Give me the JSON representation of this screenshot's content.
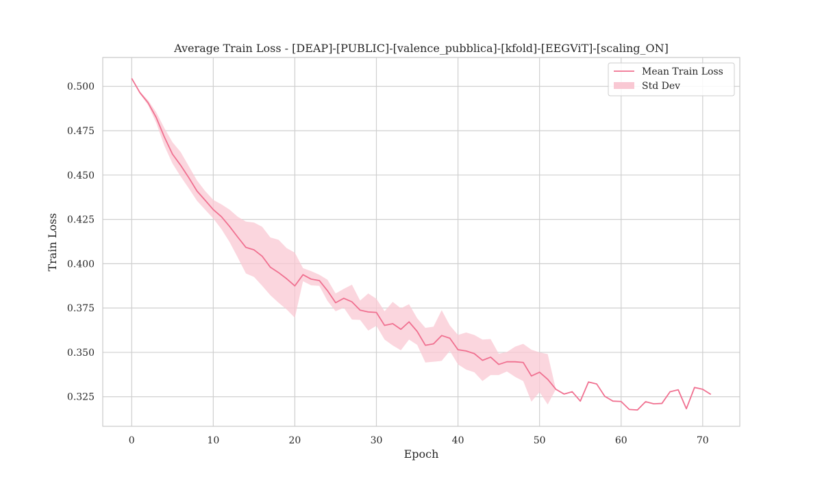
{
  "chart_data": {
    "type": "line",
    "title": "Average Train Loss - [DEAP]-[PUBLIC]-[valence_pubblica]-[kfold]-[EEGViT]-[scaling_ON]",
    "xlabel": "Epoch",
    "ylabel": "Train Loss",
    "xlim": [
      -3.55,
      74.55
    ],
    "ylim": [
      0.3083,
      0.5163
    ],
    "xticks": [
      0,
      10,
      20,
      30,
      40,
      50,
      60,
      70
    ],
    "yticks": [
      0.325,
      0.35,
      0.375,
      0.4,
      0.425,
      0.45,
      0.475,
      0.5
    ],
    "ytick_labels": [
      "0.325",
      "0.350",
      "0.375",
      "0.400",
      "0.425",
      "0.450",
      "0.475",
      "0.500"
    ],
    "grid": true,
    "legend_position": "top-right",
    "legend": [
      "Mean Train Loss",
      "Std Dev"
    ],
    "colors": {
      "line": "#f07090",
      "band": "#f9c8d3",
      "grid": "#cfcfcf",
      "frame": "#c9c9c9"
    },
    "x": [
      0,
      1,
      2,
      3,
      4,
      5,
      6,
      7,
      8,
      9,
      10,
      11,
      12,
      13,
      14,
      15,
      16,
      17,
      18,
      19,
      20,
      21,
      22,
      23,
      24,
      25,
      26,
      27,
      28,
      29,
      30,
      31,
      32,
      33,
      34,
      35,
      36,
      37,
      38,
      39,
      40,
      41,
      42,
      43,
      44,
      45,
      46,
      47,
      48,
      49,
      50,
      51,
      52,
      53,
      54,
      55,
      56,
      57,
      58,
      59,
      60,
      61,
      62,
      63,
      64,
      65,
      66,
      67,
      68,
      69,
      70,
      71
    ],
    "series": [
      {
        "name": "Mean Train Loss",
        "values": [
          0.5045,
          0.4965,
          0.4908,
          0.4825,
          0.4715,
          0.4618,
          0.4555,
          0.4485,
          0.441,
          0.4358,
          0.4305,
          0.4265,
          0.421,
          0.415,
          0.4092,
          0.4078,
          0.4042,
          0.398,
          0.395,
          0.3915,
          0.3875,
          0.3938,
          0.3913,
          0.3905,
          0.3848,
          0.378,
          0.3805,
          0.3785,
          0.3738,
          0.3728,
          0.3725,
          0.3652,
          0.3662,
          0.363,
          0.3672,
          0.3618,
          0.354,
          0.3548,
          0.3595,
          0.358,
          0.3515,
          0.3508,
          0.3493,
          0.3455,
          0.3473,
          0.3432,
          0.3447,
          0.3447,
          0.3443,
          0.3367,
          0.3388,
          0.3348,
          0.3292,
          0.3265,
          0.3278,
          0.3225,
          0.3333,
          0.3322,
          0.3252,
          0.3225,
          0.3223,
          0.3178,
          0.3175,
          0.3222,
          0.321,
          0.3212,
          0.3278,
          0.3289,
          0.3182,
          0.3302,
          0.3292,
          0.3263
        ]
      }
    ],
    "band": {
      "name": "Std Dev",
      "upper": [
        0.5045,
        0.4972,
        0.4922,
        0.4855,
        0.4765,
        0.4685,
        0.463,
        0.455,
        0.447,
        0.441,
        0.436,
        0.4335,
        0.4305,
        0.4265,
        0.4238,
        0.4232,
        0.4208,
        0.4148,
        0.4135,
        0.4088,
        0.4062,
        0.3975,
        0.3958,
        0.3938,
        0.391,
        0.3832,
        0.3858,
        0.3882,
        0.3792,
        0.3832,
        0.3802,
        0.3732,
        0.3785,
        0.3748,
        0.3772,
        0.3692,
        0.3638,
        0.3645,
        0.3738,
        0.3652,
        0.3598,
        0.3612,
        0.3598,
        0.3572,
        0.3575,
        0.3492,
        0.3502,
        0.3532,
        0.3548,
        0.3515,
        0.35,
        0.349,
        0.3292,
        0.3265,
        0.3278,
        0.3225,
        0.3333,
        0.3322,
        0.3252,
        0.3225,
        0.3223,
        0.3178,
        0.3175,
        0.3222,
        0.321,
        0.3212,
        0.3278,
        0.3289,
        0.3182,
        0.3302,
        0.3292,
        0.3263
      ],
      "lower": [
        0.5045,
        0.4958,
        0.4895,
        0.4795,
        0.4665,
        0.4565,
        0.4492,
        0.4425,
        0.4355,
        0.4305,
        0.4255,
        0.4195,
        0.4122,
        0.4035,
        0.3945,
        0.3925,
        0.3875,
        0.3822,
        0.378,
        0.3742,
        0.3695,
        0.3901,
        0.3878,
        0.3875,
        0.379,
        0.3732,
        0.3752,
        0.3685,
        0.3683,
        0.3623,
        0.365,
        0.3572,
        0.3539,
        0.3512,
        0.3572,
        0.3542,
        0.3443,
        0.3447,
        0.3452,
        0.3508,
        0.3432,
        0.3403,
        0.3388,
        0.3338,
        0.3372,
        0.3372,
        0.3392,
        0.3362,
        0.3338,
        0.3222,
        0.3276,
        0.3206,
        0.3292,
        0.3265,
        0.3278,
        0.3225,
        0.3333,
        0.3322,
        0.3252,
        0.3225,
        0.3223,
        0.3178,
        0.3175,
        0.3222,
        0.321,
        0.3212,
        0.3278,
        0.3289,
        0.3182,
        0.3302,
        0.3292,
        0.3263
      ]
    }
  }
}
